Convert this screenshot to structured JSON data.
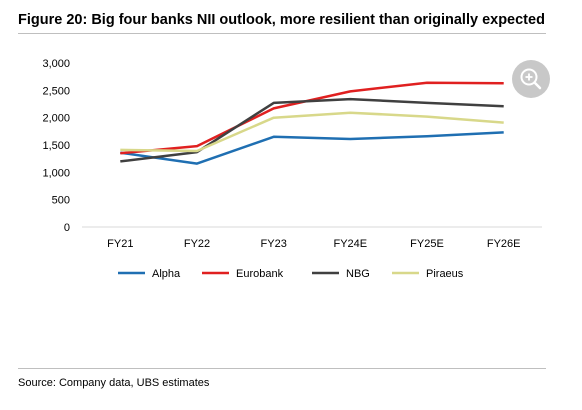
{
  "title": "Figure 20: Big four banks NII outlook, more resilient than originally expected",
  "source": "Source: Company data, UBS estimates",
  "zoom_icon": "zoom-in-icon",
  "chart_data": {
    "type": "line",
    "categories": [
      "FY21",
      "FY22",
      "FY23",
      "FY24E",
      "FY25E",
      "FY26E"
    ],
    "ylim": [
      0,
      3000
    ],
    "yticks": [
      0,
      500,
      1000,
      1500,
      2000,
      2500,
      3000
    ],
    "ytick_labels": [
      "0",
      "500",
      "1,000",
      "1,500",
      "2,000",
      "2,500",
      "3,000"
    ],
    "grid": false,
    "legend_position": "bottom",
    "series": [
      {
        "name": "Alpha",
        "color": "#1f6fb2",
        "values": [
          1360,
          1160,
          1650,
          1610,
          1660,
          1730
        ]
      },
      {
        "name": "Eurobank",
        "color": "#e02020",
        "values": [
          1350,
          1480,
          2170,
          2480,
          2640,
          2630
        ]
      },
      {
        "name": "NBG",
        "color": "#404040",
        "values": [
          1200,
          1370,
          2270,
          2340,
          2270,
          2210
        ]
      },
      {
        "name": "Piraeus",
        "color": "#d8d88a",
        "values": [
          1410,
          1390,
          2000,
          2090,
          2020,
          1910
        ]
      }
    ]
  }
}
